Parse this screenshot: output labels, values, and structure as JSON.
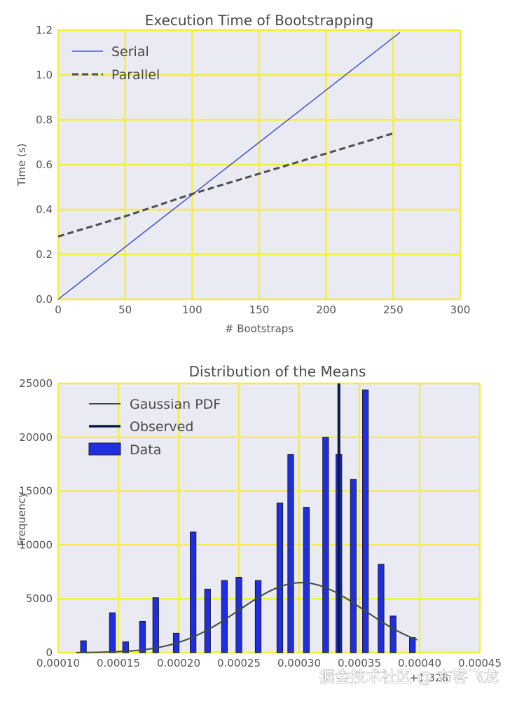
{
  "chart_data": [
    {
      "type": "line",
      "title": "Execution Time of Bootstrapping",
      "xlabel": "# Bootstraps",
      "ylabel": "Time (s)",
      "xlim": [
        0,
        300
      ],
      "ylim": [
        0,
        1.2
      ],
      "xticks": [
        0,
        50,
        100,
        150,
        200,
        250,
        300
      ],
      "yticks": [
        0.0,
        0.2,
        0.4,
        0.6,
        0.8,
        1.0,
        1.2
      ],
      "xtick_labels": [
        "0",
        "50",
        "100",
        "150",
        "200",
        "250",
        "300"
      ],
      "ytick_labels": [
        "0.0",
        "0.2",
        "0.4",
        "0.6",
        "0.8",
        "1.0",
        "1.2"
      ],
      "grid": true,
      "legend_position": "top-left",
      "series": [
        {
          "name": "Serial",
          "style": "solid",
          "color": "#2b3fd6",
          "x": [
            0,
            255
          ],
          "y": [
            0.0,
            1.19
          ]
        },
        {
          "name": "Parallel",
          "style": "dashed",
          "color": "#4d4d4d",
          "x": [
            0,
            50,
            100,
            150,
            200,
            250
          ],
          "y": [
            0.28,
            0.37,
            0.47,
            0.56,
            0.65,
            0.74
          ]
        }
      ]
    },
    {
      "type": "bar",
      "title": "Distribution of the Means",
      "xlabel": "",
      "ylabel": "Frequency",
      "xlim": [
        0.0001,
        0.00045
      ],
      "ylim": [
        0,
        25000
      ],
      "xticks": [
        0.0001,
        0.00015,
        0.0002,
        0.00025,
        0.0003,
        0.00035,
        0.0004,
        0.00045
      ],
      "yticks": [
        0,
        5000,
        10000,
        15000,
        20000,
        25000
      ],
      "xtick_labels": [
        "0.00010",
        "0.00015",
        "0.00020",
        "0.00025",
        "0.00030",
        "0.00035",
        "0.00040",
        "0.00045"
      ],
      "ytick_labels": [
        "0",
        "5000",
        "10000",
        "15000",
        "20000",
        "25000"
      ],
      "offset_text": "+1.328",
      "grid": true,
      "legend_position": "top-left",
      "bar_width": 4.8e-06,
      "bars": {
        "name": "Data",
        "color": "#1f2fe0",
        "x": [
          0.000121,
          0.000145,
          0.000156,
          0.00017,
          0.000181,
          0.000198,
          0.000212,
          0.000224,
          0.000238,
          0.00025,
          0.000266,
          0.000284,
          0.000293,
          0.000306,
          0.000322,
          0.000333,
          0.000345,
          0.000355,
          0.000368,
          0.000378,
          0.000394
        ],
        "values": [
          1100,
          3700,
          1000,
          2900,
          5100,
          1800,
          11200,
          5900,
          6700,
          7000,
          6700,
          13900,
          18400,
          13500,
          20000,
          18400,
          16100,
          24400,
          8200,
          3400,
          1400
        ]
      },
      "series": [
        {
          "name": "Gaussian PDF",
          "style": "solid",
          "color": "#3b4a3f",
          "mean": 0.000302,
          "std": 5.2e-05,
          "peak": 6500,
          "x_range": [
            0.000115,
            0.000398
          ]
        },
        {
          "name": "Observed",
          "style": "solid",
          "color": "#0b1a40",
          "x": [
            0.000333,
            0.000333
          ],
          "y": [
            0,
            25000
          ]
        }
      ]
    }
  ],
  "watermark": "掘金技术社区 @ 布客飞龙"
}
